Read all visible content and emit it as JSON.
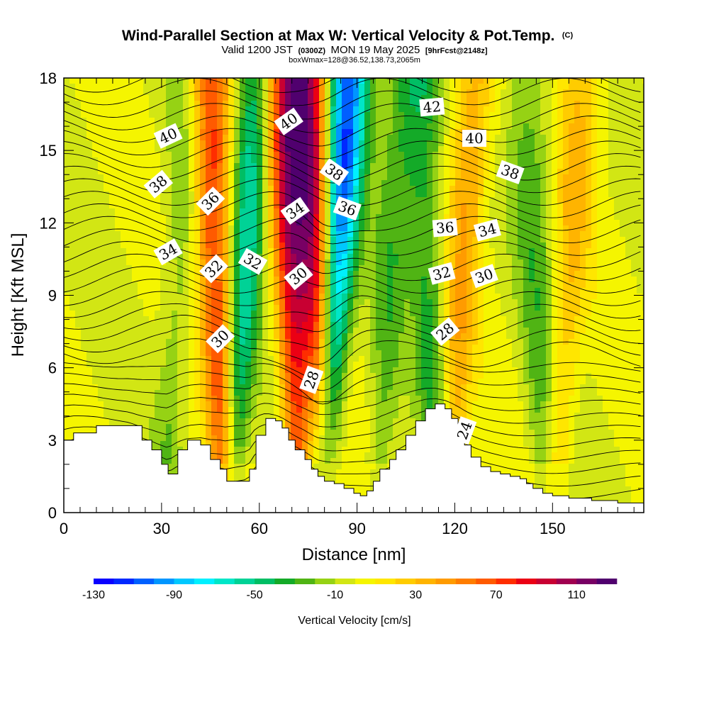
{
  "chart_data": {
    "type": "heatmap",
    "title": "Wind-Parallel Section at Max W: Vertical Velocity & Pot.Temp.",
    "copyright": "(C)",
    "subtitle": {
      "valid": "Valid 1200 JST",
      "utc": "(0300Z)",
      "date": "MON 19 May 2025",
      "forecast": "[9hrFcst@2148z]"
    },
    "box_info": "boxWmax=128@36.52,138.73,2065m",
    "xlabel": "Distance [nm]",
    "ylabel": "Height [Kft MSL]",
    "xlim": [
      0,
      178
    ],
    "ylim": [
      0,
      18
    ],
    "x_ticks": [
      0,
      30,
      60,
      90,
      120,
      150
    ],
    "y_ticks": [
      0,
      3,
      6,
      9,
      12,
      15,
      18
    ],
    "colorbar": {
      "label": "Vertical Velocity [cm/s]",
      "tick_labels": [
        "-130",
        "-90",
        "-50",
        "-10",
        "30",
        "70",
        "110"
      ],
      "tick_values": [
        -130,
        -90,
        -50,
        -10,
        30,
        70,
        110
      ],
      "levels": [
        -130,
        -120,
        -110,
        -100,
        -90,
        -80,
        -70,
        -60,
        -50,
        -40,
        -30,
        -20,
        -10,
        0,
        10,
        20,
        30,
        40,
        50,
        60,
        70,
        80,
        90,
        100,
        110,
        120
      ],
      "colors": [
        "#0a00ff",
        "#0028ff",
        "#0060ff",
        "#0096ff",
        "#00c8ff",
        "#00f0ff",
        "#00e6c8",
        "#00d296",
        "#00be64",
        "#14aa28",
        "#50b414",
        "#96d214",
        "#d2e614",
        "#f5f500",
        "#ffe600",
        "#ffcc00",
        "#ffb400",
        "#ff9b00",
        "#ff7d00",
        "#ff5a00",
        "#ff2d00",
        "#eb0014",
        "#c80032",
        "#a00050",
        "#780064",
        "#50006e"
      ]
    },
    "vertical_velocity_bands": [
      {
        "x": 35,
        "w": -20
      },
      {
        "x": 47,
        "w": 80
      },
      {
        "x": 55,
        "w": -60
      },
      {
        "x": 70,
        "w": 90
      },
      {
        "x": 83,
        "w": -110
      },
      {
        "x": 78,
        "w": 100
      },
      {
        "x": 100,
        "w": -25
      },
      {
        "x": 112,
        "w": -35
      },
      {
        "x": 122,
        "w": 40
      },
      {
        "x": 145,
        "w": -25
      },
      {
        "x": 155,
        "w": 30
      }
    ],
    "pot_temp_contour_labels": [
      {
        "text": "40",
        "x": 32,
        "y": 15.6,
        "angle": -25
      },
      {
        "text": "38",
        "x": 29,
        "y": 13.6,
        "angle": -40
      },
      {
        "text": "34",
        "x": 32,
        "y": 10.8,
        "angle": -30
      },
      {
        "text": "36",
        "x": 45,
        "y": 12.9,
        "angle": -45
      },
      {
        "text": "32",
        "x": 46,
        "y": 10.1,
        "angle": -45
      },
      {
        "text": "30",
        "x": 48,
        "y": 7.2,
        "angle": -45
      },
      {
        "text": "32",
        "x": 58,
        "y": 10.4,
        "angle": 30
      },
      {
        "text": "40",
        "x": 69,
        "y": 16.2,
        "angle": -35
      },
      {
        "text": "34",
        "x": 71,
        "y": 12.5,
        "angle": -35
      },
      {
        "text": "30",
        "x": 72,
        "y": 9.8,
        "angle": -40
      },
      {
        "text": "38",
        "x": 83,
        "y": 14.1,
        "angle": 35
      },
      {
        "text": "36",
        "x": 87,
        "y": 12.6,
        "angle": 20
      },
      {
        "text": "28",
        "x": 76,
        "y": 5.5,
        "angle": -70
      },
      {
        "text": "42",
        "x": 113,
        "y": 16.8,
        "angle": -5
      },
      {
        "text": "40",
        "x": 126,
        "y": 15.5,
        "angle": 0
      },
      {
        "text": "38",
        "x": 137,
        "y": 14.1,
        "angle": 20
      },
      {
        "text": "36",
        "x": 117,
        "y": 11.8,
        "angle": -5
      },
      {
        "text": "34",
        "x": 130,
        "y": 11.7,
        "angle": -15
      },
      {
        "text": "32",
        "x": 116,
        "y": 9.9,
        "angle": -15
      },
      {
        "text": "30",
        "x": 129,
        "y": 9.8,
        "angle": -20
      },
      {
        "text": "28",
        "x": 117,
        "y": 7.5,
        "angle": -40
      },
      {
        "text": "24",
        "x": 123,
        "y": 3.4,
        "angle": -70
      }
    ],
    "terrain": [
      [
        0,
        3.0
      ],
      [
        3,
        3.3
      ],
      [
        10,
        3.6
      ],
      [
        20,
        3.6
      ],
      [
        24,
        3.0
      ],
      [
        27,
        2.6
      ],
      [
        30,
        2.0
      ],
      [
        32,
        1.6
      ],
      [
        35,
        2.6
      ],
      [
        38,
        3.0
      ],
      [
        42,
        2.8
      ],
      [
        45,
        2.2
      ],
      [
        48,
        1.8
      ],
      [
        50,
        1.3
      ],
      [
        55,
        1.3
      ],
      [
        57,
        1.8
      ],
      [
        59,
        3.2
      ],
      [
        62,
        3.9
      ],
      [
        65,
        3.8
      ],
      [
        67,
        3.5
      ],
      [
        69,
        3.0
      ],
      [
        71,
        2.6
      ],
      [
        74,
        2.2
      ],
      [
        76,
        1.8
      ],
      [
        78,
        1.5
      ],
      [
        80,
        1.3
      ],
      [
        83,
        1.2
      ],
      [
        86,
        1.0
      ],
      [
        89,
        0.8
      ],
      [
        91,
        0.7
      ],
      [
        93,
        0.9
      ],
      [
        95,
        1.3
      ],
      [
        97,
        1.8
      ],
      [
        100,
        2.2
      ],
      [
        102,
        2.6
      ],
      [
        105,
        3.2
      ],
      [
        108,
        3.8
      ],
      [
        111,
        4.3
      ],
      [
        114,
        4.5
      ],
      [
        117,
        4.3
      ],
      [
        119,
        3.9
      ],
      [
        121,
        3.4
      ],
      [
        123,
        2.8
      ],
      [
        125,
        2.3
      ],
      [
        128,
        1.9
      ],
      [
        131,
        1.7
      ],
      [
        134,
        1.6
      ],
      [
        137,
        1.5
      ],
      [
        140,
        1.4
      ],
      [
        142,
        1.2
      ],
      [
        144,
        1.0
      ],
      [
        147,
        0.8
      ],
      [
        150,
        0.7
      ],
      [
        155,
        0.6
      ],
      [
        162,
        0.5
      ],
      [
        170,
        0.4
      ],
      [
        178,
        0.3
      ]
    ]
  }
}
